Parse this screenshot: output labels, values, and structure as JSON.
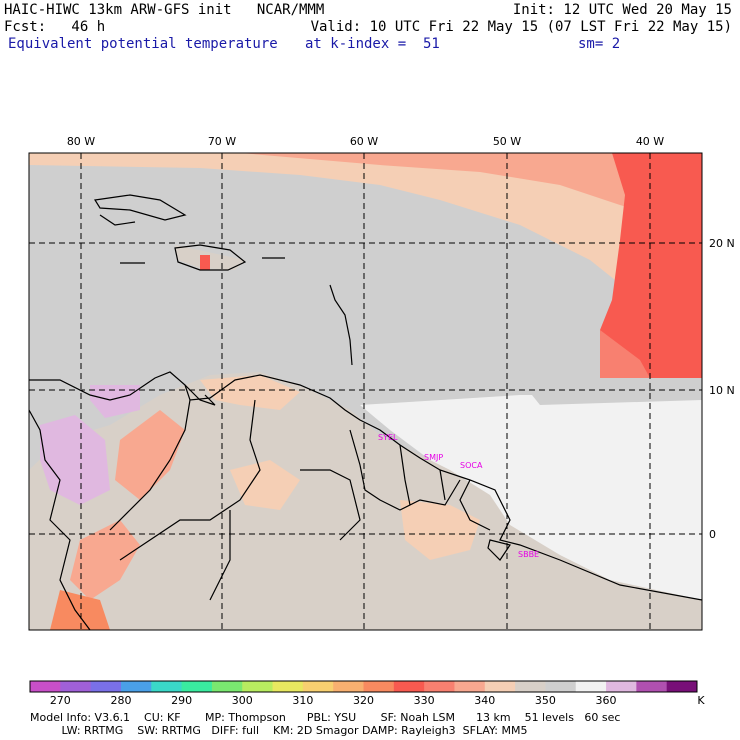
{
  "header": {
    "line1_left": "HAIC-HIWC 13km ARW-GFS init   NCAR/MMM",
    "line1_right": "Init: 12 UTC Wed 20 May 15",
    "line2_left": "Fcst:   46 h",
    "line2_right": "Valid: 10 UTC Fri 22 May 15 (07 LST Fri 22 May 15)",
    "line3_field": "Equivalent potential temperature",
    "line3_index": "at k-index =  51",
    "line3_smooth": "sm= 2"
  },
  "map": {
    "lon_labels": [
      "80 W",
      "70 W",
      "60 W",
      "50 W",
      "40 W"
    ],
    "lat_labels": [
      "20 N",
      "10 N",
      "0"
    ],
    "stations": [
      "SYEL",
      "SMJP",
      "SOCA",
      "SBBE"
    ]
  },
  "colorbar": {
    "colors": [
      "#c84fc8",
      "#a060d8",
      "#7a70e8",
      "#4aa0e8",
      "#3ad8c8",
      "#3aeba0",
      "#7ae870",
      "#b8ec60",
      "#e8e860",
      "#f8d070",
      "#f8b070",
      "#f88a60",
      "#f85a50",
      "#f88070",
      "#f8a890",
      "#f5cfb5",
      "#d8d0c8",
      "#cfcfcf",
      "#f2f2f2",
      "#e0b8e0",
      "#b050b0",
      "#781078"
    ],
    "tick_labels": [
      "270",
      "280",
      "290",
      "300",
      "310",
      "320",
      "330",
      "340",
      "350",
      "360"
    ],
    "unit": "K"
  },
  "footer": {
    "line1": "Model Info: V3.6.1    CU: KF       MP: Thompson      PBL: YSU       SF: Noah LSM      13 km    51 levels   60 sec",
    "line2": "         LW: RRTMG    SW: RRTMG   DIFF: full    KM: 2D Smagor DAMP: Rayleigh3  SFLAY: MM5"
  }
}
